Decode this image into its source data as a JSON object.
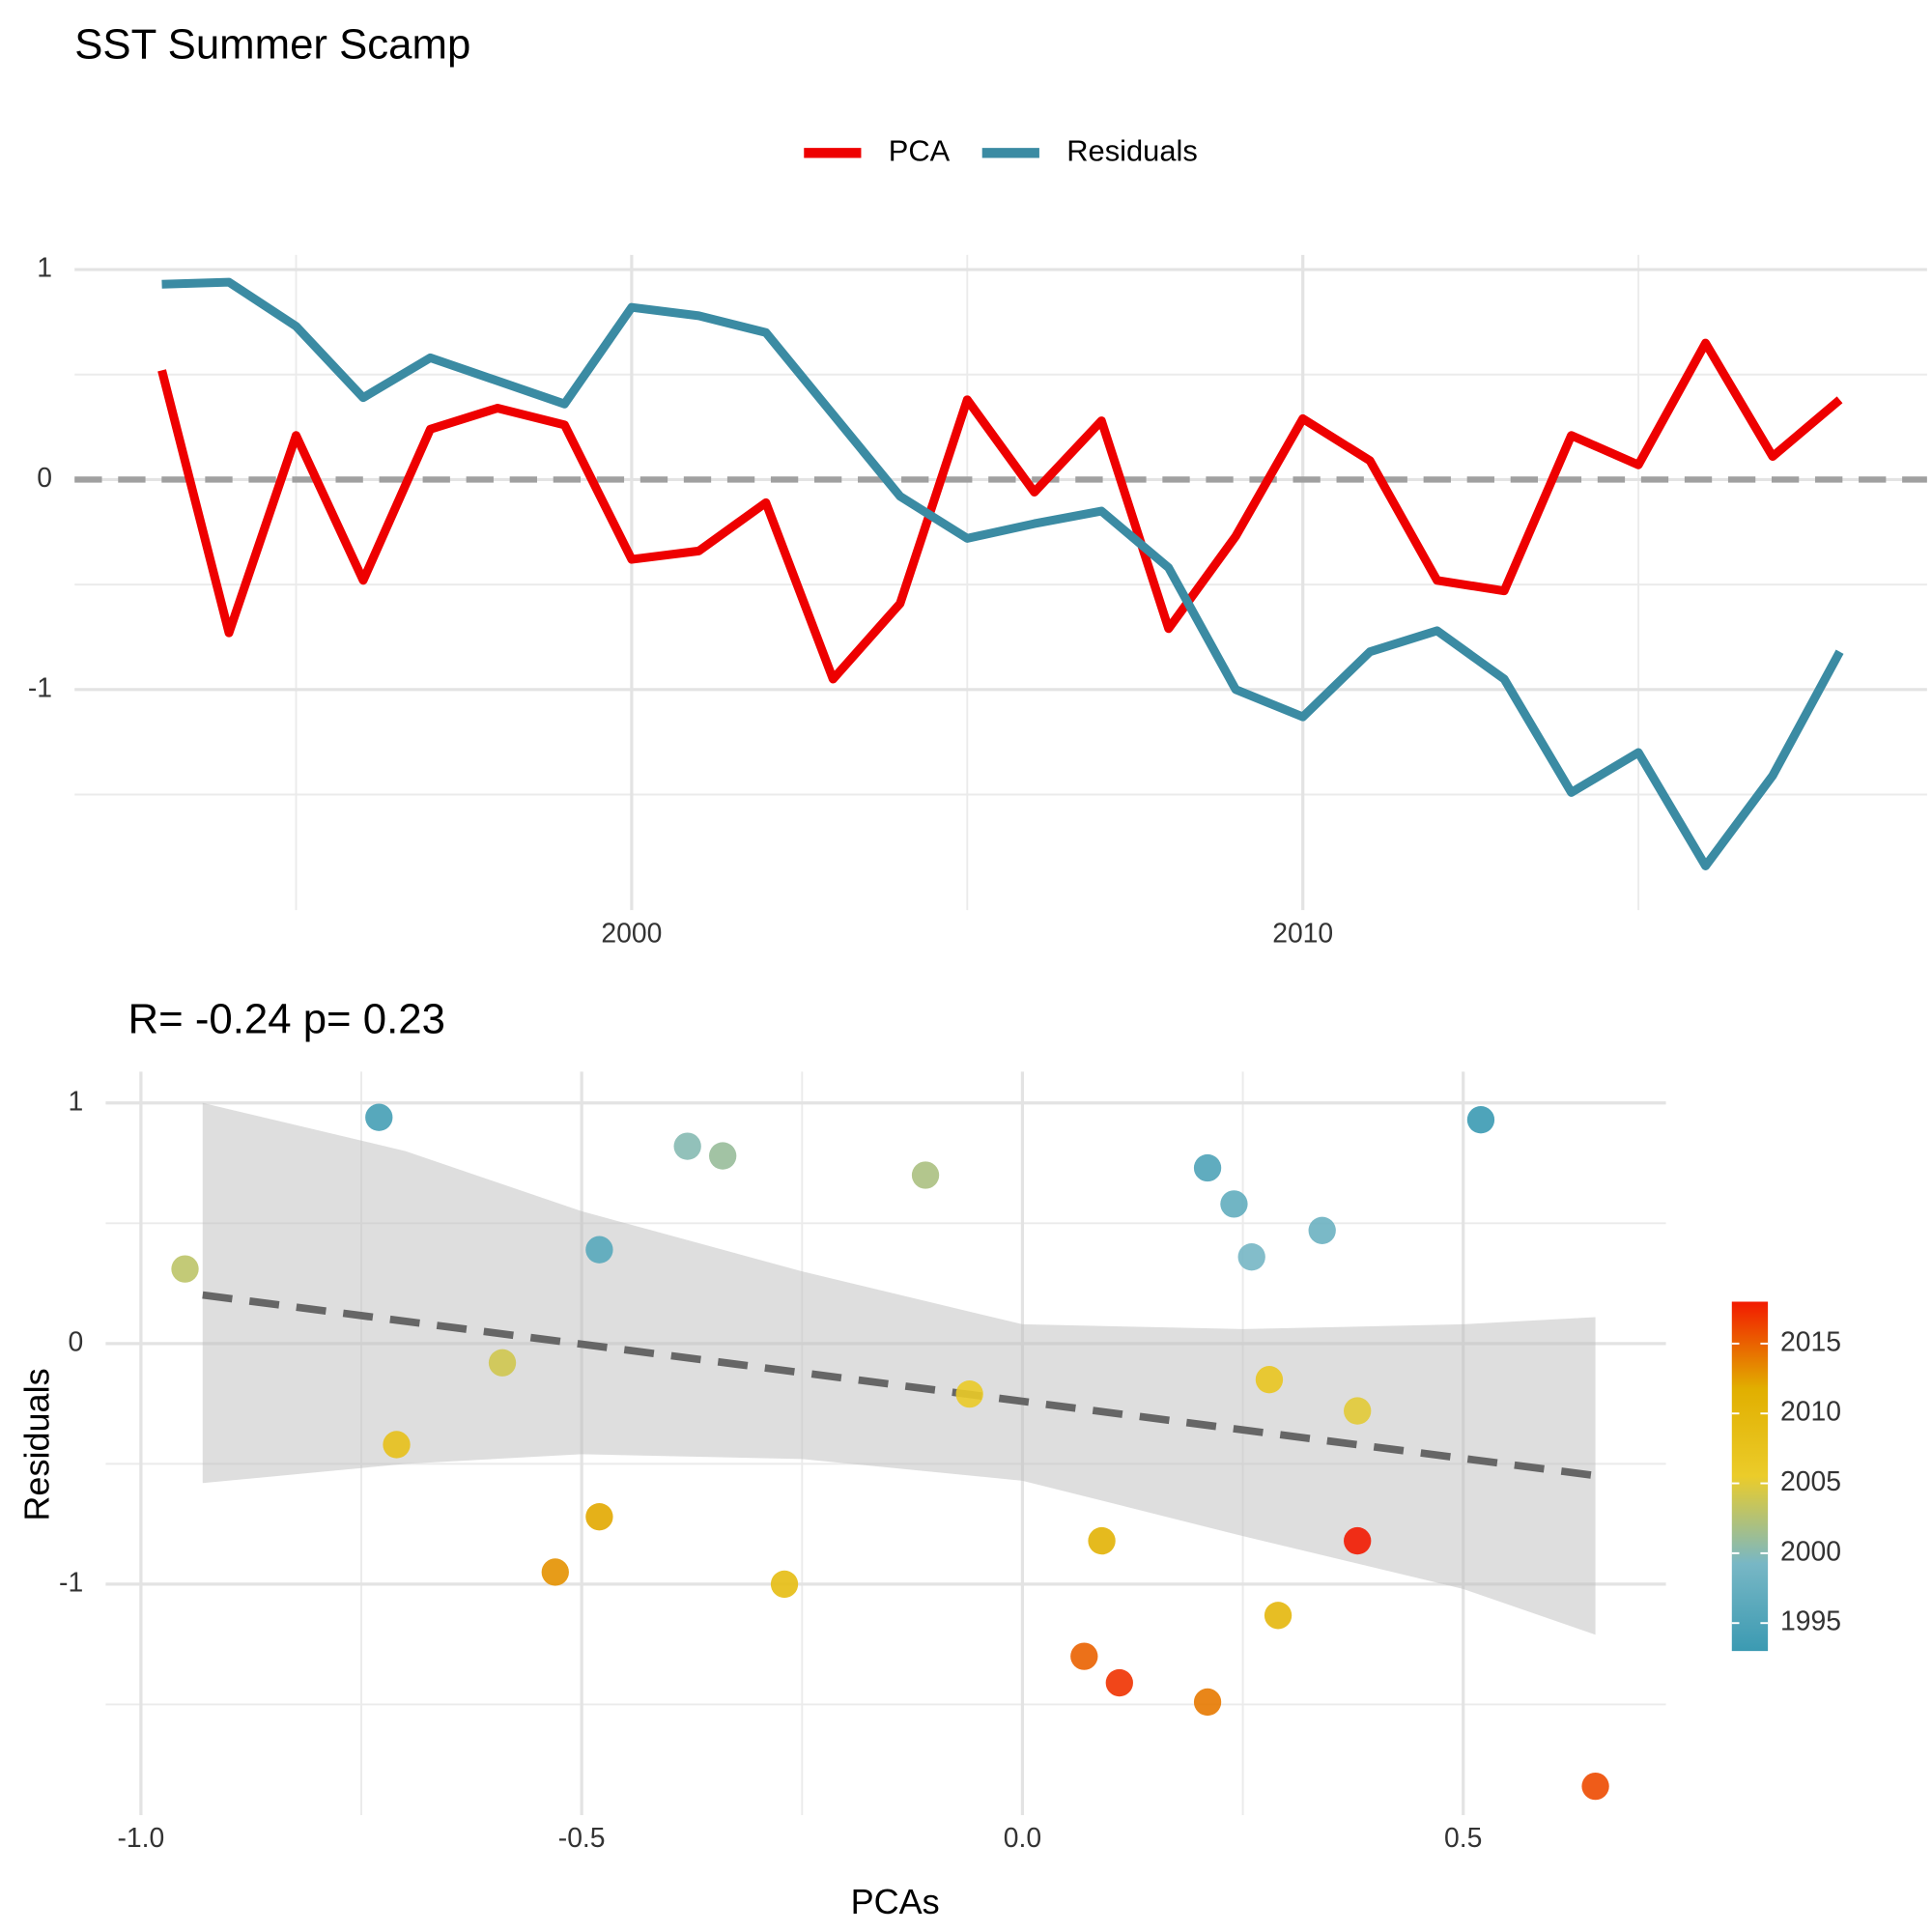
{
  "chart_data": [
    {
      "type": "line",
      "title": "SST Summer Scamp",
      "x": [
        1993,
        1994,
        1995,
        1996,
        1997,
        1998,
        1999,
        2000,
        2001,
        2002,
        2003,
        2004,
        2005,
        2006,
        2007,
        2008,
        2009,
        2010,
        2011,
        2012,
        2013,
        2014,
        2015,
        2016,
        2017,
        2018
      ],
      "series": [
        {
          "name": "PCA",
          "color": "#ee0000",
          "values": [
            0.52,
            -0.73,
            0.21,
            -0.48,
            0.24,
            0.34,
            0.26,
            -0.38,
            -0.34,
            -0.11,
            -0.95,
            -0.59,
            0.38,
            -0.06,
            0.28,
            -0.71,
            -0.27,
            0.29,
            0.09,
            -0.48,
            -0.53,
            0.21,
            0.07,
            0.65,
            0.11,
            0.38
          ]
        },
        {
          "name": "Residuals",
          "color": "#3b8ba3",
          "values": [
            0.93,
            0.94,
            0.73,
            0.39,
            0.58,
            0.47,
            0.36,
            0.82,
            0.78,
            0.7,
            0.31,
            -0.08,
            -0.28,
            -0.21,
            -0.15,
            -0.42,
            -1.0,
            -1.13,
            -0.82,
            -0.72,
            -0.95,
            -1.49,
            -1.3,
            -1.84,
            -1.41,
            -0.82
          ]
        }
      ],
      "xlim": [
        1991.7,
        2019.3
      ],
      "xticks": [
        2000,
        2010
      ],
      "ylim": [
        -2.05,
        1.07
      ],
      "yticks": [
        -1,
        0,
        1
      ],
      "hline": 0,
      "grid": true,
      "legend": "top"
    },
    {
      "type": "scatter",
      "title": "R= -0.24  p= 0.23",
      "xlabel": "PCAs",
      "ylabel": "Residuals",
      "x": [
        0.52,
        -0.73,
        0.21,
        -0.48,
        0.24,
        0.34,
        0.26,
        -0.38,
        -0.34,
        -0.11,
        -0.95,
        -0.59,
        0.38,
        -0.06,
        0.28,
        -0.71,
        -0.27,
        0.29,
        0.09,
        -0.48,
        -0.53,
        0.21,
        0.07,
        0.65,
        0.11,
        0.38
      ],
      "y": [
        0.93,
        0.94,
        0.73,
        0.39,
        0.58,
        0.47,
        0.36,
        0.82,
        0.78,
        0.7,
        0.31,
        -0.08,
        -0.28,
        -0.21,
        -0.15,
        -0.42,
        -1.0,
        -1.13,
        -0.82,
        -0.72,
        -0.95,
        -1.49,
        -1.3,
        -1.84,
        -1.41,
        -0.82
      ],
      "color_values": [
        1993,
        1994,
        1995,
        1996,
        1997,
        1998,
        1999,
        2000,
        2001,
        2002,
        2003,
        2004,
        2005,
        2006,
        2007,
        2008,
        2009,
        2010,
        2011,
        2012,
        2013,
        2014,
        2015,
        2016,
        2017,
        2018
      ],
      "palette": [
        "#3b9ab2",
        "#78b7c5",
        "#ebcc2a",
        "#e1af00",
        "#f21a00"
      ],
      "colorbar": {
        "lim": [
          1993,
          2018
        ],
        "ticks": [
          1995,
          2000,
          2005,
          2010,
          2015
        ]
      },
      "fit": {
        "x": [
          -0.93,
          0.65
        ],
        "slope": -0.475,
        "intercept": -0.24
      },
      "band": {
        "x": [
          -0.93,
          -0.7,
          -0.5,
          -0.25,
          0,
          0.25,
          0.5,
          0.65
        ],
        "lower": [
          -0.58,
          -0.5,
          -0.46,
          -0.48,
          -0.57,
          -0.8,
          -1.02,
          -1.21
        ],
        "upper": [
          1.0,
          0.8,
          0.55,
          0.3,
          0.08,
          0.06,
          0.08,
          0.11
        ]
      },
      "xlim": [
        -1.04,
        0.73
      ],
      "xticks": [
        {
          "value": -1,
          "label": "-1.0"
        },
        -0.5,
        {
          "value": 0,
          "label": "0.0"
        },
        0.5
      ],
      "ylim": [
        -1.96,
        1.13
      ],
      "yticks": [
        -1,
        0,
        1
      ],
      "grid": true
    }
  ]
}
